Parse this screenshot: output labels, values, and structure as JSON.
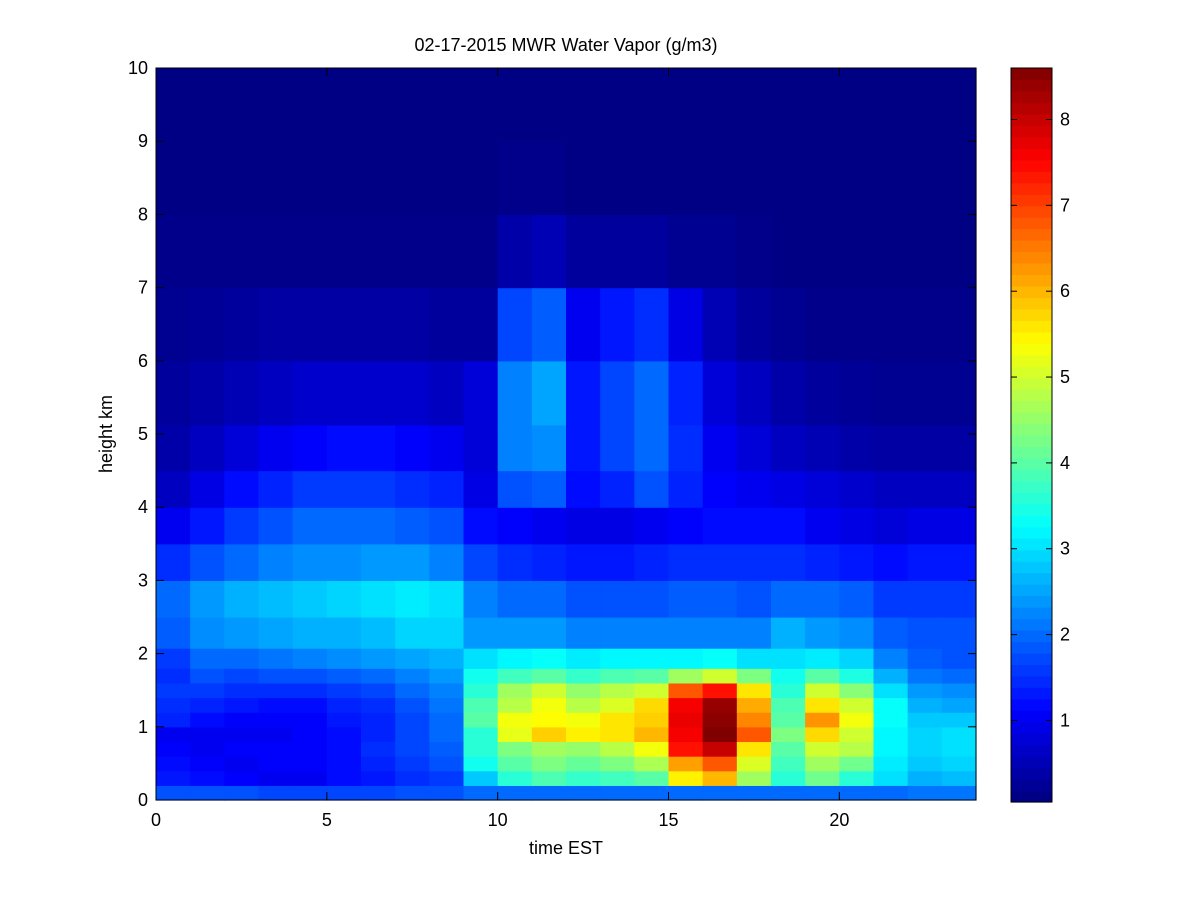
{
  "chart_data": {
    "type": "heatmap",
    "title": "02-17-2015 MWR Water Vapor (g/m3)",
    "xlabel": "time EST",
    "ylabel": "height km",
    "xlim": [
      0,
      24
    ],
    "ylim": [
      0,
      10
    ],
    "x_ticks": [
      "0",
      "5",
      "10",
      "15",
      "20"
    ],
    "y_ticks": [
      "0",
      "1",
      "2",
      "3",
      "4",
      "5",
      "6",
      "7",
      "8",
      "9",
      "10"
    ],
    "colorbar": {
      "colormap": "jet",
      "range": [
        0.05,
        8.6
      ],
      "ticks": [
        "1",
        "2",
        "3",
        "4",
        "5",
        "6",
        "7",
        "8"
      ]
    },
    "time_hours": [
      0,
      1,
      2,
      3,
      4,
      5,
      6,
      7,
      8,
      9,
      10,
      11,
      12,
      13,
      14,
      15,
      16,
      17,
      18,
      19,
      20,
      21,
      22,
      23
    ],
    "height_km": [
      0.1,
      0.3,
      0.5,
      0.7,
      0.9,
      1.1,
      1.3,
      1.5,
      1.7,
      1.9,
      2.25,
      2.75,
      3.25,
      3.75,
      4.25,
      4.75,
      5.5,
      6.5,
      7.5,
      8.5,
      9.5
    ],
    "values": [
      [
        1.8,
        1.3,
        1.2,
        1.1,
        1.0,
        1.4,
        1.5,
        1.6,
        1.5,
        1.6,
        1.9,
        2.0,
        1.5,
        1.0,
        0.6,
        0.4,
        0.3,
        0.2,
        0.15,
        0.1,
        0.1
      ],
      [
        1.8,
        1.2,
        1.1,
        1.0,
        1.0,
        1.2,
        1.4,
        1.6,
        1.8,
        2.0,
        2.3,
        2.4,
        1.8,
        1.3,
        0.9,
        0.6,
        0.4,
        0.25,
        0.15,
        0.1,
        0.1
      ],
      [
        1.8,
        1.1,
        1.0,
        1.1,
        1.0,
        1.1,
        1.3,
        1.5,
        1.7,
        2.0,
        2.4,
        2.6,
        2.0,
        1.6,
        1.2,
        0.8,
        0.5,
        0.3,
        0.15,
        0.1,
        0.1
      ],
      [
        1.7,
        1.0,
        1.1,
        1.1,
        1.0,
        1.1,
        1.2,
        1.5,
        1.8,
        2.1,
        2.5,
        2.7,
        2.2,
        1.8,
        1.4,
        1.0,
        0.6,
        0.35,
        0.15,
        0.1,
        0.1
      ],
      [
        1.7,
        1.0,
        1.1,
        1.1,
        1.1,
        1.1,
        1.2,
        1.5,
        1.8,
        2.2,
        2.6,
        2.8,
        2.3,
        2.0,
        1.6,
        1.1,
        0.7,
        0.35,
        0.15,
        0.1,
        0.1
      ],
      [
        1.7,
        1.2,
        1.2,
        1.2,
        1.2,
        1.3,
        1.4,
        1.6,
        1.9,
        2.3,
        2.6,
        2.9,
        2.3,
        2.0,
        1.6,
        1.2,
        0.7,
        0.35,
        0.15,
        0.1,
        0.1
      ],
      [
        1.7,
        1.3,
        1.4,
        1.5,
        1.4,
        1.4,
        1.5,
        1.7,
        2.0,
        2.4,
        2.7,
        3.0,
        2.4,
        2.0,
        1.6,
        1.2,
        0.7,
        0.35,
        0.15,
        0.1,
        0.1
      ],
      [
        1.8,
        1.5,
        1.6,
        1.7,
        1.7,
        1.7,
        1.8,
        2.0,
        2.2,
        2.5,
        2.9,
        3.1,
        2.4,
        1.9,
        1.5,
        1.1,
        0.7,
        0.35,
        0.15,
        0.1,
        0.1
      ],
      [
        1.8,
        1.6,
        1.8,
        1.9,
        2.0,
        2.0,
        2.1,
        2.2,
        2.4,
        2.6,
        2.9,
        3.0,
        2.2,
        1.8,
        1.4,
        1.0,
        0.6,
        0.3,
        0.15,
        0.1,
        0.1
      ],
      [
        2.0,
        2.8,
        3.4,
        3.6,
        3.6,
        4.0,
        3.9,
        3.6,
        3.4,
        3.0,
        2.4,
        2.2,
        1.7,
        1.2,
        0.9,
        0.8,
        0.8,
        0.3,
        0.15,
        0.1,
        0.1
      ],
      [
        2.0,
        3.6,
        4.0,
        4.3,
        5.2,
        5.3,
        4.8,
        4.6,
        3.8,
        3.2,
        2.4,
        2.0,
        1.5,
        1.1,
        1.8,
        2.2,
        2.2,
        1.7,
        0.4,
        0.15,
        0.1
      ],
      [
        2.0,
        3.9,
        4.3,
        4.6,
        5.8,
        5.4,
        5.3,
        5.0,
        4.0,
        3.3,
        2.4,
        2.0,
        1.4,
        1.0,
        1.9,
        2.3,
        2.5,
        1.9,
        0.5,
        0.15,
        0.1
      ],
      [
        2.0,
        3.7,
        4.1,
        4.5,
        5.5,
        5.3,
        4.8,
        4.5,
        3.7,
        3.1,
        2.2,
        1.8,
        1.3,
        0.9,
        1.2,
        1.3,
        1.3,
        1.0,
        0.3,
        0.1,
        0.1
      ],
      [
        2.0,
        3.8,
        4.3,
        4.8,
        5.6,
        5.6,
        5.1,
        4.8,
        3.9,
        3.2,
        2.2,
        1.8,
        1.3,
        0.9,
        1.4,
        1.7,
        1.7,
        1.3,
        0.3,
        0.1,
        0.1
      ],
      [
        2.0,
        4.0,
        4.7,
        5.3,
        6.0,
        5.8,
        5.7,
        5.0,
        4.0,
        3.2,
        2.2,
        1.8,
        1.4,
        1.0,
        1.8,
        2.0,
        2.0,
        1.5,
        0.3,
        0.1,
        0.1
      ],
      [
        2.0,
        5.5,
        6.2,
        7.4,
        7.6,
        7.7,
        7.6,
        6.8,
        4.6,
        3.2,
        2.2,
        1.9,
        1.5,
        1.1,
        1.4,
        1.5,
        1.4,
        0.9,
        0.2,
        0.1,
        0.1
      ],
      [
        2.0,
        6.0,
        6.8,
        8.0,
        8.6,
        8.5,
        8.4,
        7.4,
        5.0,
        3.3,
        2.2,
        1.9,
        1.5,
        1.2,
        1.1,
        1.0,
        0.8,
        0.5,
        0.2,
        0.1,
        0.1
      ],
      [
        2.0,
        4.6,
        5.1,
        5.6,
        6.8,
        6.4,
        6.1,
        5.6,
        4.3,
        3.0,
        2.2,
        1.8,
        1.5,
        1.2,
        1.0,
        0.8,
        0.6,
        0.3,
        0.15,
        0.1,
        0.1
      ],
      [
        2.0,
        3.6,
        3.8,
        4.0,
        4.3,
        4.0,
        3.9,
        3.6,
        3.4,
        3.0,
        2.6,
        2.0,
        1.5,
        1.2,
        0.9,
        0.6,
        0.4,
        0.2,
        0.1,
        0.1,
        0.1
      ],
      [
        2.0,
        4.2,
        4.6,
        5.0,
        5.7,
        6.3,
        5.6,
        5.0,
        4.0,
        3.1,
        2.4,
        2.0,
        1.4,
        1.0,
        0.8,
        0.5,
        0.3,
        0.15,
        0.1,
        0.1,
        0.1
      ],
      [
        2.0,
        3.6,
        4.2,
        4.8,
        5.0,
        5.3,
        5.0,
        4.4,
        3.5,
        2.9,
        2.3,
        1.9,
        1.3,
        0.9,
        0.7,
        0.4,
        0.25,
        0.15,
        0.1,
        0.1,
        0.1
      ],
      [
        2.0,
        3.0,
        3.1,
        3.2,
        3.2,
        3.3,
        3.3,
        3.0,
        2.6,
        2.2,
        1.9,
        1.6,
        1.2,
        0.8,
        0.6,
        0.35,
        0.2,
        0.15,
        0.1,
        0.1,
        0.1
      ],
      [
        2.1,
        2.6,
        2.8,
        2.9,
        2.9,
        2.8,
        2.6,
        2.4,
        2.1,
        1.9,
        1.8,
        1.6,
        1.3,
        0.9,
        0.6,
        0.35,
        0.2,
        0.15,
        0.1,
        0.1,
        0.1
      ],
      [
        2.1,
        2.7,
        2.9,
        3.0,
        3.0,
        2.8,
        2.5,
        2.3,
        2.0,
        1.8,
        1.8,
        1.6,
        1.3,
        0.9,
        0.6,
        0.35,
        0.2,
        0.15,
        0.1,
        0.1,
        0.1
      ]
    ]
  }
}
